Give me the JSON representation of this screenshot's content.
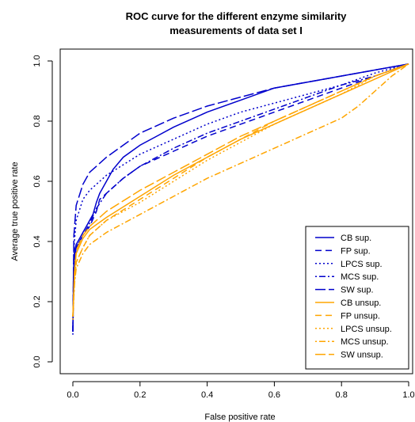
{
  "chart_data": {
    "type": "line",
    "title": "ROC curve for the different enzyme similarity measurements of data set I",
    "title_lines": [
      "ROC curve for the different enzyme similarity",
      "measurements of data set I"
    ],
    "xlabel": "False positive rate",
    "ylabel": "Average true positive rate",
    "xlim": [
      0,
      1
    ],
    "ylim": [
      0,
      1
    ],
    "xticks": [
      "0.0",
      "0.2",
      "0.4",
      "0.6",
      "0.8",
      "1.0"
    ],
    "yticks": [
      "0.0",
      "0.2",
      "0.4",
      "0.6",
      "0.8",
      "1.0"
    ],
    "grid": false,
    "legend_position": "bottom-right",
    "series": [
      {
        "name": "CB sup.",
        "color": "#0000cc",
        "dash": "solid",
        "points": [
          [
            0,
            0.1
          ],
          [
            0.002,
            0.3
          ],
          [
            0.005,
            0.37
          ],
          [
            0.01,
            0.39
          ],
          [
            0.02,
            0.41
          ],
          [
            0.03,
            0.43
          ],
          [
            0.04,
            0.45
          ],
          [
            0.05,
            0.47
          ],
          [
            0.06,
            0.49
          ],
          [
            0.07,
            0.53
          ],
          [
            0.08,
            0.56
          ],
          [
            0.1,
            0.6
          ],
          [
            0.12,
            0.64
          ],
          [
            0.15,
            0.68
          ],
          [
            0.2,
            0.72
          ],
          [
            0.25,
            0.75
          ],
          [
            0.3,
            0.78
          ],
          [
            0.4,
            0.83
          ],
          [
            0.5,
            0.87
          ],
          [
            0.6,
            0.91
          ],
          [
            0.7,
            0.93
          ],
          [
            0.8,
            0.95
          ],
          [
            0.9,
            0.97
          ],
          [
            1,
            0.99
          ]
        ]
      },
      {
        "name": "FP sup.",
        "color": "#0000cc",
        "dash": "dash",
        "points": [
          [
            0,
            0.1
          ],
          [
            0.003,
            0.32
          ],
          [
            0.01,
            0.38
          ],
          [
            0.03,
            0.42
          ],
          [
            0.05,
            0.45
          ],
          [
            0.07,
            0.5
          ],
          [
            0.08,
            0.54
          ],
          [
            0.1,
            0.56
          ],
          [
            0.15,
            0.61
          ],
          [
            0.2,
            0.65
          ],
          [
            0.3,
            0.7
          ],
          [
            0.4,
            0.75
          ],
          [
            0.5,
            0.79
          ],
          [
            0.6,
            0.83
          ],
          [
            0.7,
            0.87
          ],
          [
            0.8,
            0.91
          ],
          [
            0.9,
            0.95
          ],
          [
            1,
            0.99
          ]
        ]
      },
      {
        "name": "LPCS sup.",
        "color": "#0000cc",
        "dash": "dot",
        "points": [
          [
            0,
            0.1
          ],
          [
            0.003,
            0.38
          ],
          [
            0.01,
            0.47
          ],
          [
            0.03,
            0.54
          ],
          [
            0.05,
            0.57
          ],
          [
            0.1,
            0.62
          ],
          [
            0.2,
            0.69
          ],
          [
            0.3,
            0.74
          ],
          [
            0.4,
            0.79
          ],
          [
            0.5,
            0.83
          ],
          [
            0.6,
            0.86
          ],
          [
            0.7,
            0.89
          ],
          [
            0.8,
            0.92
          ],
          [
            0.9,
            0.96
          ],
          [
            1,
            0.99
          ]
        ]
      },
      {
        "name": "MCS sup.",
        "color": "#0000cc",
        "dash": "dotdash",
        "points": [
          [
            0,
            0.09
          ],
          [
            0.003,
            0.32
          ],
          [
            0.01,
            0.38
          ],
          [
            0.03,
            0.42
          ],
          [
            0.05,
            0.46
          ],
          [
            0.07,
            0.51
          ],
          [
            0.1,
            0.56
          ],
          [
            0.15,
            0.61
          ],
          [
            0.2,
            0.65
          ],
          [
            0.3,
            0.71
          ],
          [
            0.4,
            0.76
          ],
          [
            0.5,
            0.8
          ],
          [
            0.6,
            0.84
          ],
          [
            0.7,
            0.88
          ],
          [
            0.8,
            0.92
          ],
          [
            0.9,
            0.95
          ],
          [
            1,
            0.99
          ]
        ]
      },
      {
        "name": "SW sup.",
        "color": "#0000cc",
        "dash": "longdash",
        "points": [
          [
            0,
            0.1
          ],
          [
            0.003,
            0.42
          ],
          [
            0.01,
            0.52
          ],
          [
            0.03,
            0.59
          ],
          [
            0.05,
            0.63
          ],
          [
            0.1,
            0.68
          ],
          [
            0.15,
            0.72
          ],
          [
            0.2,
            0.76
          ],
          [
            0.3,
            0.81
          ],
          [
            0.4,
            0.85
          ],
          [
            0.5,
            0.88
          ],
          [
            0.6,
            0.91
          ],
          [
            0.7,
            0.93
          ],
          [
            0.8,
            0.95
          ],
          [
            0.9,
            0.97
          ],
          [
            1,
            0.99
          ]
        ]
      },
      {
        "name": "CB unsup.",
        "color": "#ffa500",
        "dash": "solid",
        "points": [
          [
            0,
            0.15
          ],
          [
            0.005,
            0.3
          ],
          [
            0.01,
            0.36
          ],
          [
            0.03,
            0.41
          ],
          [
            0.05,
            0.44
          ],
          [
            0.1,
            0.48
          ],
          [
            0.2,
            0.55
          ],
          [
            0.3,
            0.62
          ],
          [
            0.4,
            0.68
          ],
          [
            0.5,
            0.74
          ],
          [
            0.6,
            0.79
          ],
          [
            0.7,
            0.84
          ],
          [
            0.8,
            0.89
          ],
          [
            0.9,
            0.94
          ],
          [
            1,
            0.99
          ]
        ]
      },
      {
        "name": "FP unsup.",
        "color": "#ffa500",
        "dash": "dash",
        "points": [
          [
            0,
            0.15
          ],
          [
            0.005,
            0.28
          ],
          [
            0.01,
            0.33
          ],
          [
            0.03,
            0.38
          ],
          [
            0.05,
            0.42
          ],
          [
            0.1,
            0.47
          ],
          [
            0.2,
            0.54
          ],
          [
            0.3,
            0.61
          ],
          [
            0.4,
            0.68
          ],
          [
            0.5,
            0.74
          ],
          [
            0.6,
            0.8
          ],
          [
            0.7,
            0.85
          ],
          [
            0.8,
            0.9
          ],
          [
            0.9,
            0.95
          ],
          [
            1,
            0.99
          ]
        ]
      },
      {
        "name": "LPCS unsup.",
        "color": "#ffa500",
        "dash": "dot",
        "points": [
          [
            0,
            0.14
          ],
          [
            0.005,
            0.27
          ],
          [
            0.01,
            0.33
          ],
          [
            0.03,
            0.38
          ],
          [
            0.05,
            0.42
          ],
          [
            0.1,
            0.47
          ],
          [
            0.2,
            0.53
          ],
          [
            0.3,
            0.6
          ],
          [
            0.4,
            0.67
          ],
          [
            0.5,
            0.73
          ],
          [
            0.6,
            0.79
          ],
          [
            0.7,
            0.84
          ],
          [
            0.8,
            0.89
          ],
          [
            0.9,
            0.95
          ],
          [
            1,
            0.99
          ]
        ]
      },
      {
        "name": "MCS unsup.",
        "color": "#ffa500",
        "dash": "dotdash",
        "points": [
          [
            0,
            0.15
          ],
          [
            0.005,
            0.26
          ],
          [
            0.01,
            0.31
          ],
          [
            0.03,
            0.36
          ],
          [
            0.05,
            0.39
          ],
          [
            0.1,
            0.43
          ],
          [
            0.2,
            0.49
          ],
          [
            0.3,
            0.55
          ],
          [
            0.4,
            0.61
          ],
          [
            0.5,
            0.66
          ],
          [
            0.6,
            0.71
          ],
          [
            0.7,
            0.76
          ],
          [
            0.8,
            0.81
          ],
          [
            0.85,
            0.85
          ],
          [
            0.9,
            0.9
          ],
          [
            0.95,
            0.95
          ],
          [
            1,
            0.99
          ]
        ]
      },
      {
        "name": "SW unsup.",
        "color": "#ffa500",
        "dash": "longdash",
        "points": [
          [
            0,
            0.15
          ],
          [
            0.005,
            0.3
          ],
          [
            0.01,
            0.37
          ],
          [
            0.03,
            0.42
          ],
          [
            0.05,
            0.45
          ],
          [
            0.1,
            0.5
          ],
          [
            0.2,
            0.57
          ],
          [
            0.3,
            0.63
          ],
          [
            0.4,
            0.69
          ],
          [
            0.5,
            0.75
          ],
          [
            0.6,
            0.8
          ],
          [
            0.7,
            0.85
          ],
          [
            0.8,
            0.9
          ],
          [
            0.9,
            0.95
          ],
          [
            1,
            0.99
          ]
        ]
      }
    ]
  }
}
